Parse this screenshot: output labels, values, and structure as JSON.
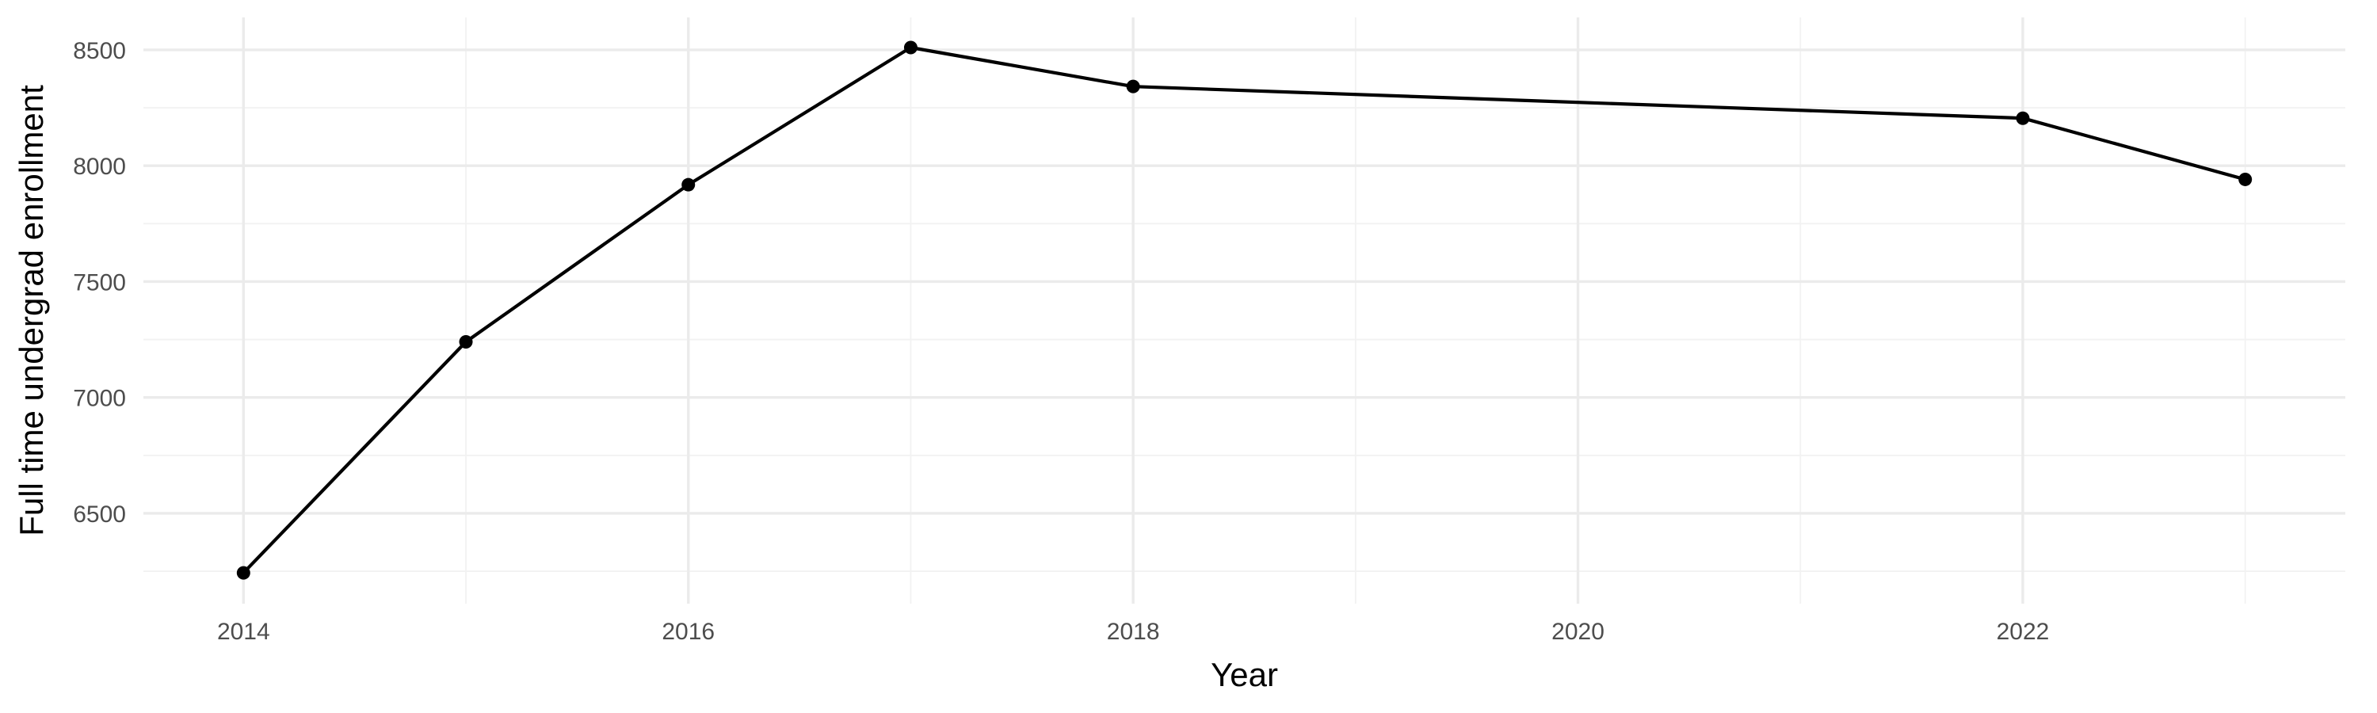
{
  "chart_data": {
    "type": "line",
    "xlabel": "Year",
    "ylabel": "Full time undergrad enrollment",
    "x": [
      2014,
      2015,
      2016,
      2017,
      2018,
      2022,
      2023
    ],
    "series": [
      {
        "values": [
          6243,
          7240,
          7918,
          8510,
          8342,
          8205,
          7941
        ]
      }
    ],
    "xlim": [
      2013.55,
      2023.45
    ],
    "ylim": [
      6110,
      8640
    ],
    "x_ticks": [
      2014,
      2016,
      2018,
      2020,
      2022
    ],
    "x_tick_labels": [
      "2014",
      "2016",
      "2018",
      "2020",
      "2022"
    ],
    "y_ticks": [
      6500,
      7000,
      7500,
      8000,
      8500
    ],
    "y_tick_labels": [
      "6500",
      "7000",
      "7500",
      "8000",
      "8500"
    ],
    "grid": true,
    "line_color": "#000000",
    "point_color": "#000000"
  }
}
